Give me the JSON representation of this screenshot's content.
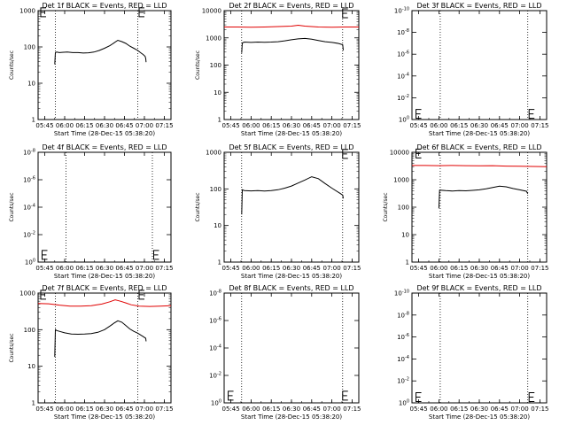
{
  "colors": {
    "events": "#000000",
    "lld": "#e00000",
    "axes": "#000000"
  },
  "chart_data": [
    {
      "type": "line",
      "title": "Det 1f BLACK = Events, RED = LLD",
      "ylabel": "Counts/sec",
      "xlabel": "Start Time (28-Dec-15 05:38:20)",
      "xlim": [
        0,
        100
      ],
      "x_ticks": [
        5,
        20,
        35,
        50,
        65,
        80,
        95
      ],
      "x_tick_labels": [
        "05:45",
        "06:00",
        "06:15",
        "06:30",
        "06:45",
        "07:00",
        "07:15"
      ],
      "yscale": "log",
      "ylim": [
        1,
        1000
      ],
      "y_ticks": [
        1,
        10,
        100,
        1000
      ],
      "y_tick_labels": [
        "1",
        "10",
        "100",
        "1000"
      ],
      "vlines": [
        13,
        75
      ],
      "series": [
        {
          "color": "#000000",
          "x": [
            12.5,
            13,
            14,
            16,
            18,
            22,
            26,
            30,
            34,
            38,
            42,
            46,
            50,
            54,
            57,
            60,
            63,
            66,
            69,
            72,
            75,
            77,
            79,
            80.5,
            81,
            81.3
          ],
          "y": [
            33,
            70,
            72,
            70,
            71,
            72,
            70,
            70,
            68,
            69,
            72,
            80,
            92,
            108,
            128,
            152,
            140,
            125,
            105,
            92,
            80,
            70,
            62,
            55,
            48,
            38
          ]
        }
      ],
      "e_markers": [
        {
          "x": 2,
          "y": 900
        },
        {
          "x": 76,
          "y": 900
        }
      ]
    },
    {
      "type": "line",
      "title": "Det 2f BLACK = Events, RED = LLD",
      "ylabel": "Counts/sec",
      "xlabel": "Start Time (28-Dec-15 05:38:20)",
      "xlim": [
        0,
        100
      ],
      "x_ticks": [
        5,
        20,
        35,
        50,
        65,
        80,
        95
      ],
      "x_tick_labels": [
        "05:45",
        "06:00",
        "06:15",
        "06:30",
        "06:45",
        "07:00",
        "07:15"
      ],
      "yscale": "log",
      "ylim": [
        1,
        10000
      ],
      "y_ticks": [
        1,
        10,
        100,
        1000,
        10000
      ],
      "y_tick_labels": [
        "1",
        "10",
        "100",
        "1000",
        "10000"
      ],
      "vlines": [
        13,
        88
      ],
      "series": [
        {
          "color": "#e00000",
          "x": [
            0,
            10,
            20,
            30,
            40,
            50,
            55,
            60,
            65,
            70,
            80,
            90,
            100
          ],
          "y": [
            2500,
            2500,
            2450,
            2500,
            2600,
            2700,
            2900,
            2700,
            2600,
            2500,
            2450,
            2500,
            2500
          ]
        },
        {
          "color": "#000000",
          "x": [
            13,
            13.5,
            15,
            20,
            25,
            30,
            35,
            40,
            45,
            50,
            55,
            60,
            65,
            70,
            75,
            80,
            85,
            88,
            88.5
          ],
          "y": [
            280,
            650,
            700,
            680,
            700,
            690,
            700,
            720,
            780,
            850,
            920,
            950,
            900,
            800,
            720,
            680,
            620,
            560,
            350
          ]
        }
      ],
      "e_markers": [
        {
          "x": 88,
          "y": 8000
        }
      ]
    },
    {
      "type": "line",
      "title": "Det 3f BLACK = Events, RED = LLD",
      "ylabel": "",
      "xlabel": "Start Time (28-Dec-15 05:38:20)",
      "xlim": [
        0,
        100
      ],
      "x_ticks": [
        5,
        20,
        35,
        50,
        65,
        80,
        95
      ],
      "x_tick_labels": [
        "05:45",
        "06:00",
        "06:15",
        "06:30",
        "06:45",
        "07:00",
        "07:15"
      ],
      "yscale": "log",
      "ylim": [
        1,
        1e-10
      ],
      "y_ticks": [
        1,
        0.01,
        0.0001,
        1e-06,
        1e-08,
        1e-10
      ],
      "y_tick_labels": [
        "10^0",
        "10^-2",
        "10^-4",
        "10^-6",
        "10^-8",
        "10^-10"
      ],
      "vlines": [
        21,
        86
      ],
      "series": [],
      "e_markers": [
        {
          "x": 3,
          "y": 0.3
        },
        {
          "x": 87,
          "y": 0.3
        }
      ]
    },
    {
      "type": "line",
      "title": "Det 4f BLACK = Events, RED = LLD",
      "ylabel": "Counts/sec",
      "xlabel": "Start Time (28-Dec-15 05:38:20)",
      "xlim": [
        0,
        100
      ],
      "x_ticks": [
        5,
        20,
        35,
        50,
        65,
        80,
        95
      ],
      "x_tick_labels": [
        "05:45",
        "06:00",
        "06:15",
        "06:30",
        "06:45",
        "07:00",
        "07:15"
      ],
      "yscale": "log",
      "ylim": [
        1,
        1e-08
      ],
      "y_ticks": [
        1,
        0.01,
        0.0001,
        1e-06,
        1e-08
      ],
      "y_tick_labels": [
        "10^0",
        "10^-2",
        "10^-4",
        "10^-6",
        "10^-8"
      ],
      "vlines": [
        21,
        86
      ],
      "series": [],
      "e_markers": [
        {
          "x": 3,
          "y": 0.3
        },
        {
          "x": 87,
          "y": 0.3
        }
      ]
    },
    {
      "type": "line",
      "title": "Det 5f BLACK = Events, RED = LLD",
      "ylabel": "Counts/sec",
      "xlabel": "Start Time (28-Dec-15 05:38:20)",
      "xlim": [
        0,
        100
      ],
      "x_ticks": [
        5,
        20,
        35,
        50,
        65,
        80,
        95
      ],
      "x_tick_labels": [
        "05:45",
        "06:00",
        "06:15",
        "06:30",
        "06:45",
        "07:00",
        "07:15"
      ],
      "yscale": "log",
      "ylim": [
        1,
        1000
      ],
      "y_ticks": [
        1,
        10,
        100,
        1000
      ],
      "y_tick_labels": [
        "1",
        "10",
        "100",
        "1000"
      ],
      "vlines": [
        13,
        88
      ],
      "series": [
        {
          "color": "#000000",
          "x": [
            13,
            13.5,
            15,
            20,
            25,
            30,
            35,
            40,
            45,
            50,
            55,
            60,
            65,
            70,
            75,
            80,
            85,
            88,
            88.5
          ],
          "y": [
            20,
            95,
            90,
            88,
            90,
            87,
            90,
            95,
            105,
            120,
            145,
            175,
            215,
            190,
            140,
            105,
            80,
            68,
            55
          ]
        }
      ],
      "e_markers": [
        {
          "x": 88,
          "y": 900
        }
      ]
    },
    {
      "type": "line",
      "title": "Det 6f BLACK = Events, RED = LLD",
      "ylabel": "Counts/sec",
      "xlabel": "Start Time (28-Dec-15 05:38:20)",
      "xlim": [
        0,
        100
      ],
      "x_ticks": [
        5,
        20,
        35,
        50,
        65,
        80,
        95
      ],
      "x_tick_labels": [
        "05:45",
        "06:00",
        "06:15",
        "06:30",
        "06:45",
        "07:00",
        "07:15"
      ],
      "yscale": "log",
      "ylim": [
        1,
        10000
      ],
      "y_ticks": [
        1,
        10,
        100,
        1000,
        10000
      ],
      "y_tick_labels": [
        "1",
        "10",
        "100",
        "1000",
        "10000"
      ],
      "vlines": [
        21,
        86
      ],
      "series": [
        {
          "color": "#e00000",
          "x": [
            0,
            10,
            20,
            30,
            40,
            50,
            60,
            70,
            80,
            90,
            100
          ],
          "y": [
            3300,
            3300,
            3250,
            3300,
            3250,
            3200,
            3250,
            3150,
            3100,
            3050,
            3000
          ]
        },
        {
          "color": "#000000",
          "x": [
            20,
            20.5,
            25,
            30,
            35,
            40,
            45,
            50,
            55,
            60,
            65,
            70,
            75,
            80,
            85,
            86
          ],
          "y": [
            90,
            420,
            400,
            390,
            400,
            395,
            410,
            430,
            470,
            520,
            580,
            550,
            480,
            430,
            380,
            310
          ]
        }
      ],
      "e_markers": [
        {
          "x": 3,
          "y": 9000
        }
      ]
    },
    {
      "type": "line",
      "title": "Det 7f BLACK = Events, RED = LLD",
      "ylabel": "Counts/sec",
      "xlabel": "Start Time (28-Dec-15 05:38:20)",
      "xlim": [
        0,
        100
      ],
      "x_ticks": [
        5,
        20,
        35,
        50,
        65,
        80,
        95
      ],
      "x_tick_labels": [
        "05:45",
        "06:00",
        "06:15",
        "06:30",
        "06:45",
        "07:00",
        "07:15"
      ],
      "yscale": "log",
      "ylim": [
        1,
        1000
      ],
      "y_ticks": [
        1,
        10,
        100,
        1000
      ],
      "y_tick_labels": [
        "1",
        "10",
        "100",
        "1000"
      ],
      "vlines": [
        13,
        75
      ],
      "series": [
        {
          "color": "#e00000",
          "x": [
            0,
            8,
            16,
            24,
            32,
            40,
            48,
            54,
            58,
            62,
            66,
            70,
            76,
            84,
            92,
            100
          ],
          "y": [
            520,
            510,
            470,
            440,
            440,
            450,
            500,
            580,
            650,
            600,
            540,
            480,
            440,
            430,
            440,
            450
          ]
        },
        {
          "color": "#000000",
          "x": [
            12.5,
            13,
            14,
            16,
            20,
            25,
            30,
            35,
            40,
            45,
            50,
            54,
            57,
            60,
            63,
            66,
            69,
            72,
            75,
            77,
            79,
            81,
            81.3
          ],
          "y": [
            18,
            100,
            95,
            90,
            82,
            76,
            75,
            76,
            78,
            85,
            100,
            125,
            150,
            175,
            160,
            130,
            105,
            90,
            80,
            72,
            65,
            58,
            48
          ]
        }
      ],
      "e_markers": [
        {
          "x": 2,
          "y": 900
        },
        {
          "x": 76,
          "y": 900
        }
      ]
    },
    {
      "type": "line",
      "title": "Det 8f BLACK = Events, RED = LLD",
      "ylabel": "",
      "xlabel": "Start Time (28-Dec-15 05:38:20)",
      "xlim": [
        0,
        100
      ],
      "x_ticks": [
        5,
        20,
        35,
        50,
        65,
        80,
        95
      ],
      "x_tick_labels": [
        "05:45",
        "06:00",
        "06:15",
        "06:30",
        "06:45",
        "07:00",
        "07:15"
      ],
      "yscale": "log",
      "ylim": [
        1,
        1e-08
      ],
      "y_ticks": [
        1,
        0.01,
        0.0001,
        1e-06,
        1e-08
      ],
      "y_tick_labels": [
        "10^0",
        "10^-2",
        "10^-4",
        "10^-6",
        "10^-8"
      ],
      "vlines": [
        13,
        88
      ],
      "series": [],
      "e_markers": [
        {
          "x": 3,
          "y": 0.3
        },
        {
          "x": 88,
          "y": 0.3
        }
      ]
    },
    {
      "type": "line",
      "title": "Det 9f BLACK = Events, RED = LLD",
      "ylabel": "",
      "xlabel": "Start Time (28-Dec-15 05:38:20)",
      "xlim": [
        0,
        100
      ],
      "x_ticks": [
        5,
        20,
        35,
        50,
        65,
        80,
        95
      ],
      "x_tick_labels": [
        "05:45",
        "06:00",
        "06:15",
        "06:30",
        "06:45",
        "07:00",
        "07:15"
      ],
      "yscale": "log",
      "ylim": [
        1,
        1e-10
      ],
      "y_ticks": [
        1,
        0.01,
        0.0001,
        1e-06,
        1e-08,
        1e-10
      ],
      "y_tick_labels": [
        "10^0",
        "10^-2",
        "10^-4",
        "10^-6",
        "10^-8",
        "10^-10"
      ],
      "vlines": [
        21,
        86
      ],
      "series": [],
      "e_markers": [
        {
          "x": 3,
          "y": 0.3
        },
        {
          "x": 87,
          "y": 0.3
        }
      ]
    }
  ]
}
